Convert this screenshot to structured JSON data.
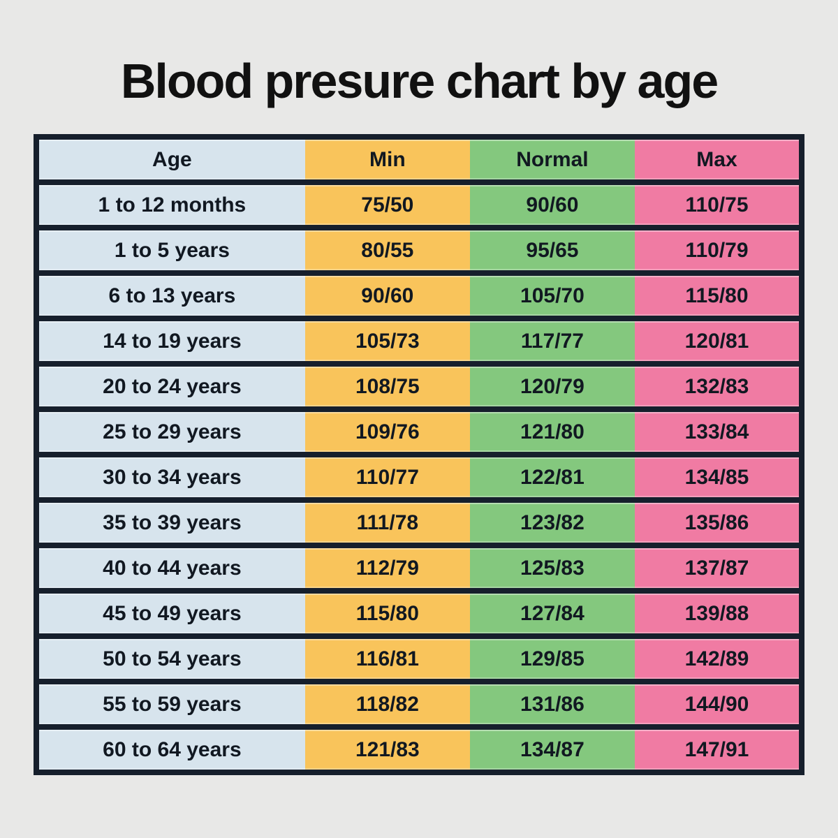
{
  "title": "Blood presure chart by age",
  "colors": {
    "background": "#e8e8e7",
    "frame": "#161f2c",
    "age_column": "#d7e4ed",
    "min_column": "#f9c45b",
    "normal_column": "#84c87e",
    "max_column": "#f07ba3",
    "text": "#111821"
  },
  "table": {
    "headers": [
      "Age",
      "Min",
      "Normal",
      "Max"
    ],
    "rows": [
      [
        "1 to 12 months",
        "75/50",
        "90/60",
        "110/75"
      ],
      [
        "1 to 5 years",
        "80/55",
        "95/65",
        "110/79"
      ],
      [
        "6 to 13 years",
        "90/60",
        "105/70",
        "115/80"
      ],
      [
        "14 to 19 years",
        "105/73",
        "117/77",
        "120/81"
      ],
      [
        "20 to 24 years",
        "108/75",
        "120/79",
        "132/83"
      ],
      [
        "25 to 29 years",
        "109/76",
        "121/80",
        "133/84"
      ],
      [
        "30 to 34 years",
        "110/77",
        "122/81",
        "134/85"
      ],
      [
        "35 to 39 years",
        "111/78",
        "123/82",
        "135/86"
      ],
      [
        "40 to 44 years",
        "112/79",
        "125/83",
        "137/87"
      ],
      [
        "45 to 49 years",
        "115/80",
        "127/84",
        "139/88"
      ],
      [
        "50 to 54 years",
        "116/81",
        "129/85",
        "142/89"
      ],
      [
        "55 to 59 years",
        "118/82",
        "131/86",
        "144/90"
      ],
      [
        "60 to 64 years",
        "121/83",
        "134/87",
        "147/91"
      ]
    ]
  },
  "chart_data": {
    "type": "table",
    "title": "Blood presure chart by age",
    "columns": [
      "Age",
      "Min",
      "Normal",
      "Max"
    ],
    "rows": [
      {
        "age": "1 to 12 months",
        "min": "75/50",
        "normal": "90/60",
        "max": "110/75"
      },
      {
        "age": "1 to 5 years",
        "min": "80/55",
        "normal": "95/65",
        "max": "110/79"
      },
      {
        "age": "6 to 13 years",
        "min": "90/60",
        "normal": "105/70",
        "max": "115/80"
      },
      {
        "age": "14 to 19 years",
        "min": "105/73",
        "normal": "117/77",
        "max": "120/81"
      },
      {
        "age": "20 to 24 years",
        "min": "108/75",
        "normal": "120/79",
        "max": "132/83"
      },
      {
        "age": "25 to 29 years",
        "min": "109/76",
        "normal": "121/80",
        "max": "133/84"
      },
      {
        "age": "30 to 34 years",
        "min": "110/77",
        "normal": "122/81",
        "max": "134/85"
      },
      {
        "age": "35 to 39 years",
        "min": "111/78",
        "normal": "123/82",
        "max": "135/86"
      },
      {
        "age": "40 to 44 years",
        "min": "112/79",
        "normal": "125/83",
        "max": "137/87"
      },
      {
        "age": "45 to 49 years",
        "min": "115/80",
        "normal": "127/84",
        "max": "139/88"
      },
      {
        "age": "50 to 54 years",
        "min": "116/81",
        "normal": "129/85",
        "max": "142/89"
      },
      {
        "age": "55 to 59 years",
        "min": "118/82",
        "normal": "131/86",
        "max": "144/90"
      },
      {
        "age": "60 to 64 years",
        "min": "121/83",
        "normal": "134/87",
        "max": "147/91"
      }
    ],
    "legend_position": "none",
    "grid": "row-separators"
  }
}
